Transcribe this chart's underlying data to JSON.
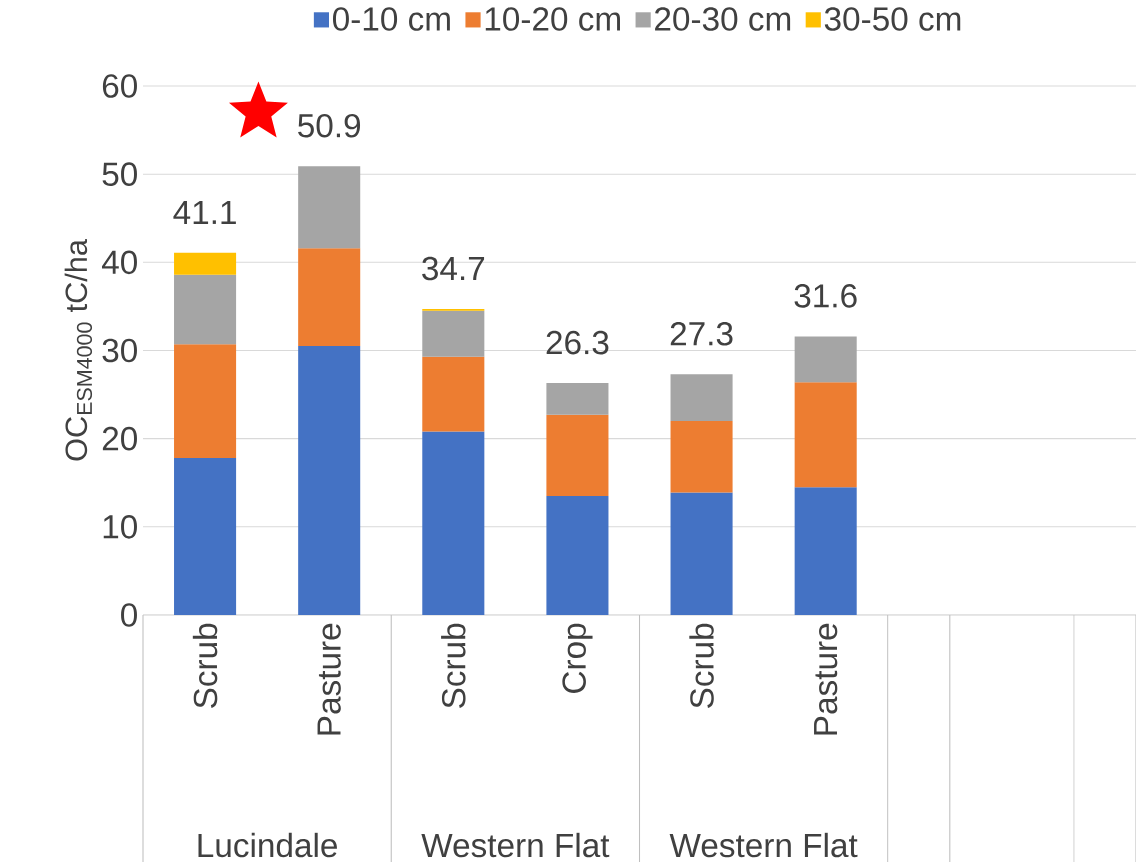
{
  "chart_data": {
    "type": "bar",
    "stacked": true,
    "ylabel": "OC$_{ESM4000}$ tC/ha",
    "categories": [
      "Scrub",
      "Pasture",
      "Scrub",
      "Crop",
      "Scrub",
      "Pasture",
      null,
      null
    ],
    "series": [
      {
        "name": "0-10 cm",
        "color": "#4472c4",
        "values": [
          17.8,
          30.5,
          20.8,
          13.5,
          13.9,
          14.5,
          null,
          null
        ]
      },
      {
        "name": "10-20 cm",
        "color": "#ed7d31",
        "values": [
          12.9,
          11.1,
          8.5,
          9.2,
          8.1,
          11.9,
          null,
          null
        ]
      },
      {
        "name": "20-30 cm",
        "color": "#a5a5a5",
        "values": [
          7.9,
          9.3,
          5.2,
          3.6,
          5.3,
          5.2,
          null,
          null
        ]
      },
      {
        "name": "30-50 cm",
        "color": "#ffc000",
        "values": [
          2.5,
          null,
          0.2,
          null,
          null,
          null,
          null,
          null
        ]
      }
    ],
    "totals": [
      "41.1",
      "50.9",
      "34.7",
      "26.3",
      "27.3",
      "31.6",
      null,
      null
    ],
    "annotations": [
      "Lucindale",
      "Western Flat",
      "Western Flat"
    ],
    "ylim": [
      0,
      60
    ],
    "yticks": [
      0,
      10,
      20,
      30,
      40,
      50,
      60
    ],
    "grid": "y",
    "legend": "top"
  }
}
